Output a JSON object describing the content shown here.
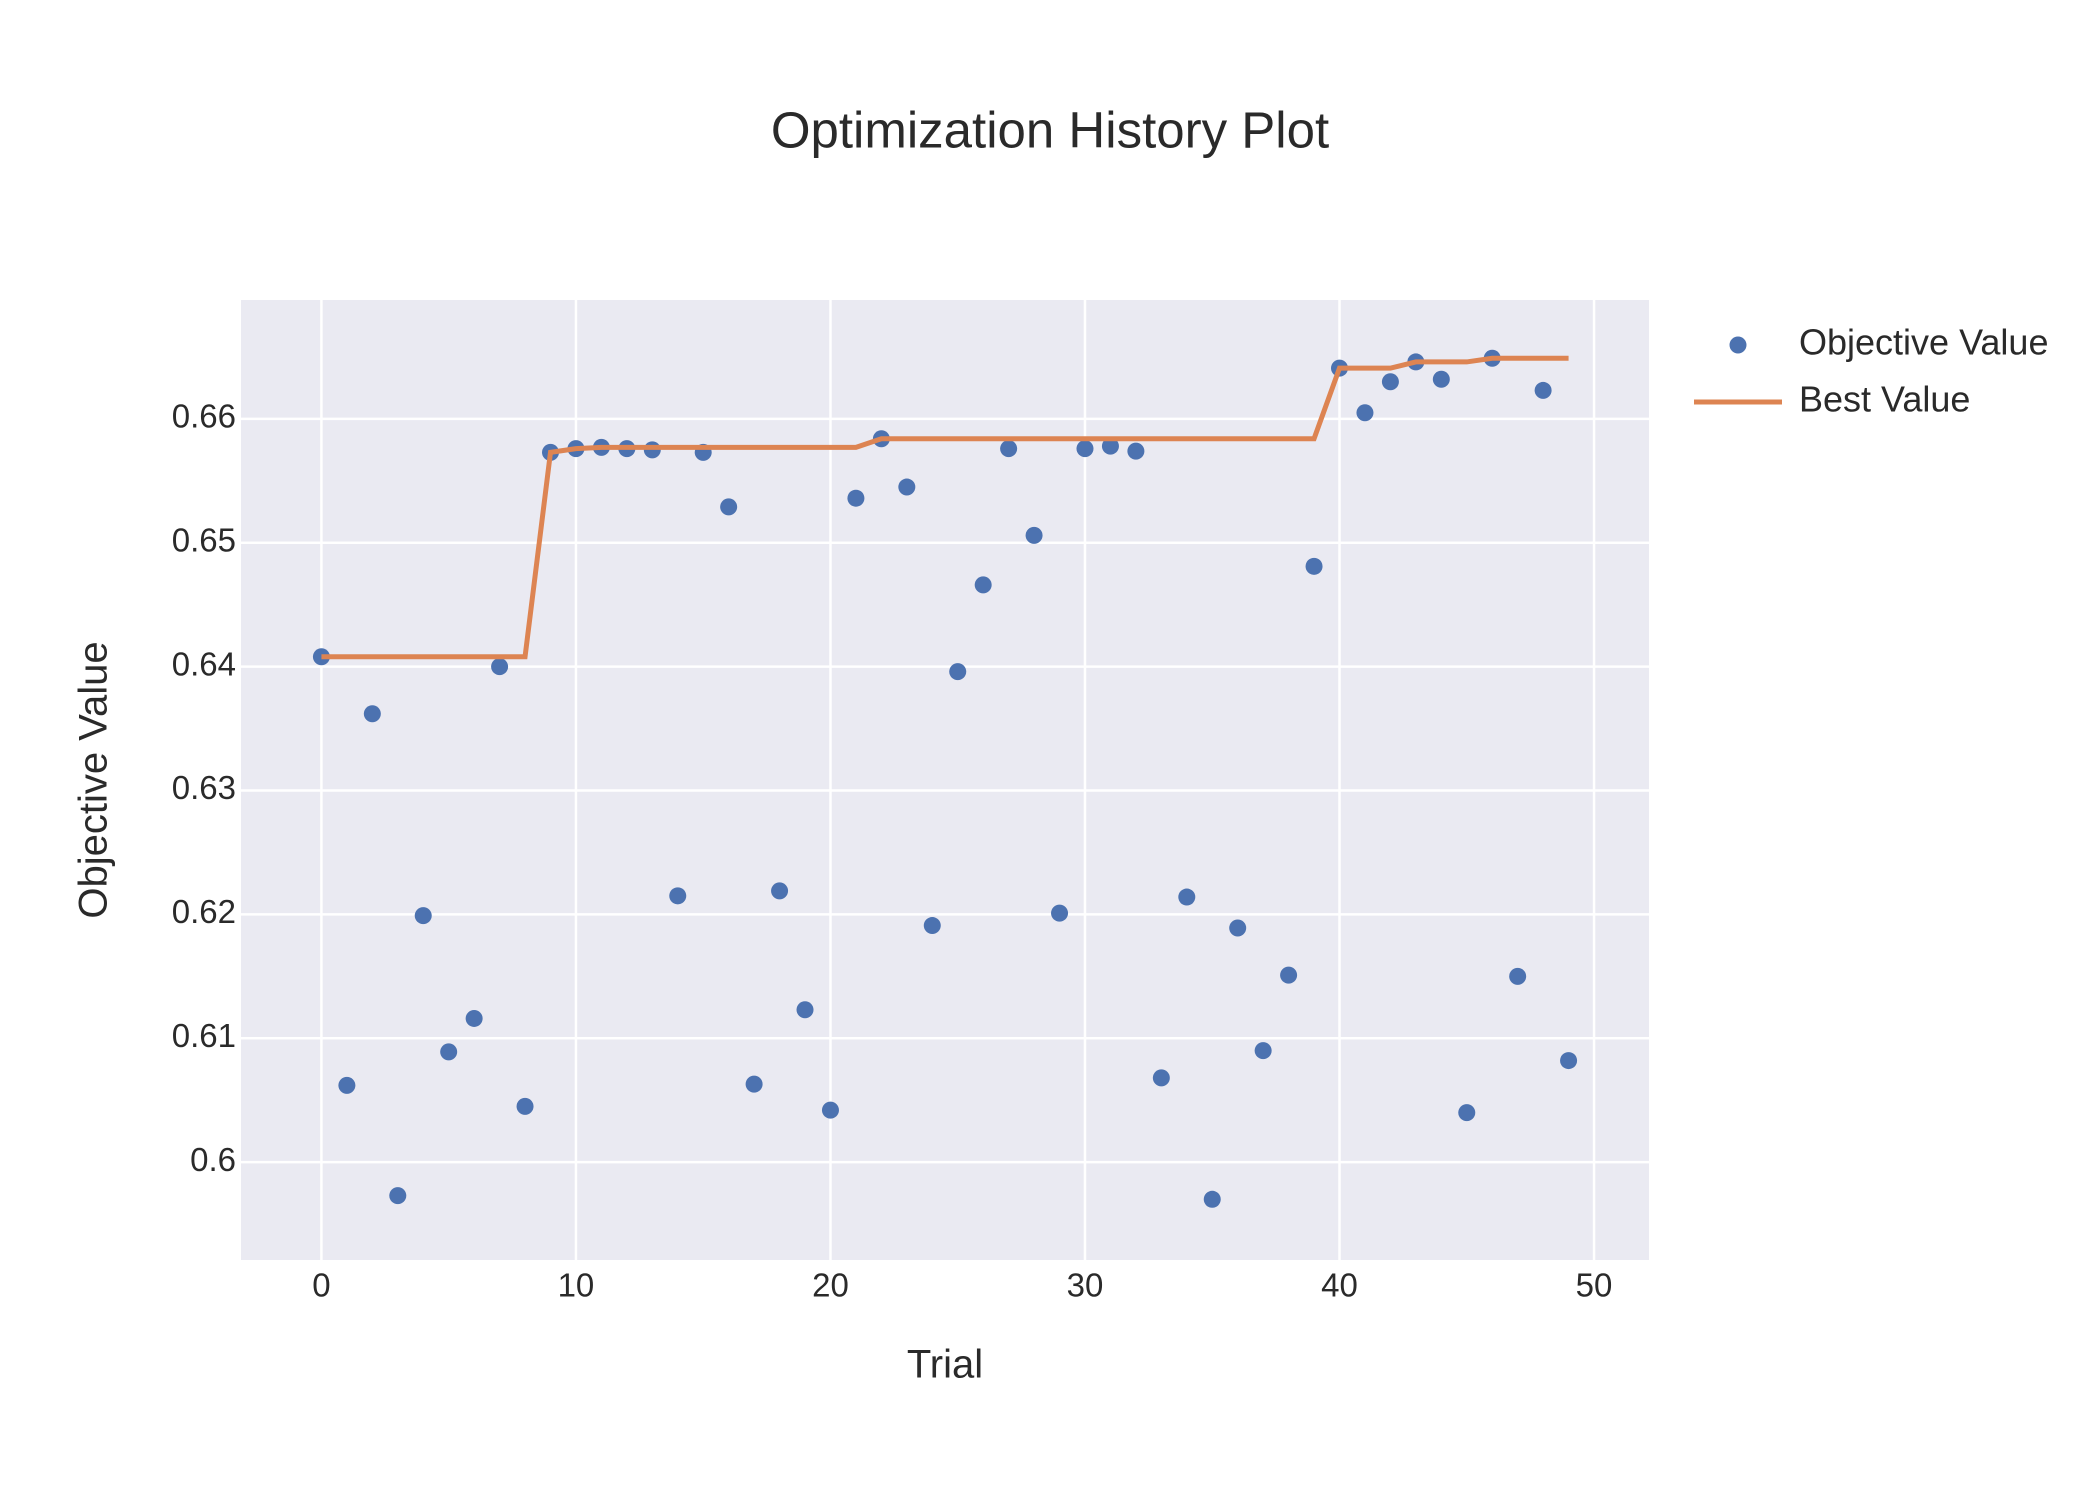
{
  "chart_data": {
    "type": "scatter",
    "title": "Optimization History Plot",
    "x_label": "Trial",
    "y_label": "Objective Value",
    "x": [
      0,
      1,
      2,
      3,
      4,
      5,
      6,
      7,
      8,
      9,
      10,
      11,
      12,
      13,
      14,
      15,
      16,
      17,
      18,
      19,
      20,
      21,
      22,
      23,
      24,
      25,
      26,
      27,
      28,
      29,
      30,
      31,
      32,
      33,
      34,
      35,
      36,
      37,
      38,
      39,
      40,
      41,
      42,
      43,
      44,
      45,
      46,
      47,
      48,
      49
    ],
    "series": [
      {
        "name": "Objective Value",
        "color": "#4c72b0",
        "mode": "markers",
        "values": [
          0.6408,
          0.6062,
          0.6362,
          0.5973,
          0.6199,
          0.6089,
          0.6116,
          0.64,
          0.6045,
          0.6573,
          0.6576,
          0.6577,
          0.6576,
          0.6575,
          0.6215,
          0.6573,
          0.6529,
          0.6063,
          0.6219,
          0.6123,
          0.6042,
          0.6536,
          0.6584,
          0.6545,
          0.6191,
          0.6396,
          0.6466,
          0.6576,
          0.6506,
          0.6201,
          0.6576,
          0.6578,
          0.6574,
          0.6068,
          0.6214,
          0.597,
          0.6189,
          0.609,
          0.6151,
          0.6481,
          0.6641,
          0.6605,
          0.663,
          0.6646,
          0.6632,
          0.604,
          0.6649,
          0.615,
          0.6623,
          0.6082
        ]
      },
      {
        "name": "Best Value",
        "color": "#dd8452",
        "mode": "lines",
        "values": [
          0.6408,
          0.6408,
          0.6408,
          0.6408,
          0.6408,
          0.6408,
          0.6408,
          0.6408,
          0.6408,
          0.6573,
          0.6576,
          0.6577,
          0.6577,
          0.6577,
          0.6577,
          0.6577,
          0.6577,
          0.6577,
          0.6577,
          0.6577,
          0.6577,
          0.6577,
          0.6584,
          0.6584,
          0.6584,
          0.6584,
          0.6584,
          0.6584,
          0.6584,
          0.6584,
          0.6584,
          0.6584,
          0.6584,
          0.6584,
          0.6584,
          0.6584,
          0.6584,
          0.6584,
          0.6584,
          0.6584,
          0.6641,
          0.6641,
          0.6641,
          0.6646,
          0.6646,
          0.6646,
          0.6649,
          0.6649,
          0.6649,
          0.6649
        ]
      }
    ],
    "xlim": [
      -3.16,
      52.16
    ],
    "ylim": [
      0.5921,
      0.6696
    ],
    "xticks": [
      0,
      10,
      20,
      30,
      40,
      50
    ],
    "yticks": [
      0.6,
      0.61,
      0.62,
      0.63,
      0.64,
      0.65,
      0.66
    ],
    "grid": true,
    "background": "#eaeaf2",
    "legend": "outside-right"
  }
}
